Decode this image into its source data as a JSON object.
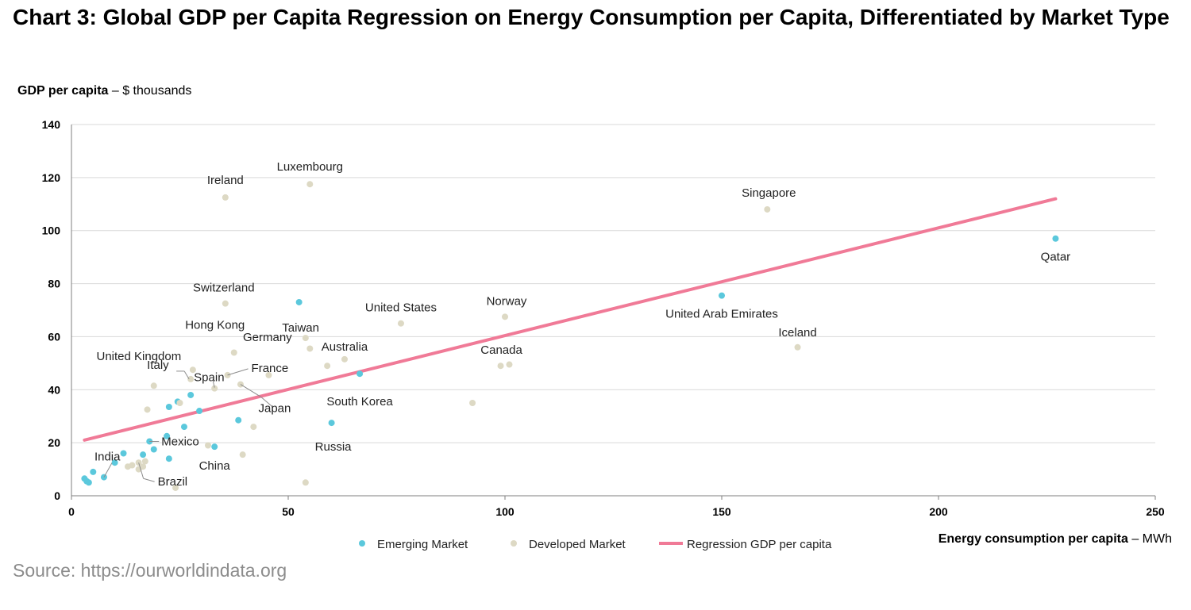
{
  "title": "Chart 3: Global GDP per Capita Regression on Energy Consumption per Capita, Differentiated by Market Type",
  "source": "Source: https://ourworldindata.org",
  "colors": {
    "emerging": "#5bc8dc",
    "developed": "#ddd9c4",
    "regression": "#f07a97",
    "grid": "#d9d9d9"
  },
  "chart_data": {
    "type": "scatter",
    "ylabel_bold": "GDP per capita",
    "ylabel_rest": " – $ thousands",
    "xlabel_bold": "Energy consumption per capita",
    "xlabel_rest": " – MWh",
    "xlim": [
      0,
      250
    ],
    "ylim": [
      0,
      140
    ],
    "x_ticks": [
      "0",
      "50",
      "100",
      "150",
      "200",
      "250"
    ],
    "y_ticks": [
      "0",
      "20",
      "40",
      "60",
      "80",
      "100",
      "120",
      "140"
    ],
    "grid": true,
    "legend_position": "bottom",
    "legend": [
      "Emerging Market",
      "Developed Market",
      "Regression GDP per capita"
    ],
    "regression": {
      "name": "Regression GDP per capita",
      "x": [
        3,
        227
      ],
      "y": [
        21,
        112
      ]
    },
    "series": [
      {
        "name": "Emerging Market",
        "points": [
          {
            "x": 227,
            "y": 97,
            "label": "Qatar"
          },
          {
            "x": 150,
            "y": 75.5,
            "label": "United Arab Emirates"
          },
          {
            "x": 52.5,
            "y": 73,
            "label": "Taiwan"
          },
          {
            "x": 66.5,
            "y": 46,
            "label": "South Korea"
          },
          {
            "x": 60,
            "y": 27.5,
            "label": "Russia"
          },
          {
            "x": 33,
            "y": 18.5,
            "label": "China"
          },
          {
            "x": 18,
            "y": 20.5,
            "label": "Mexico"
          },
          {
            "x": 7.5,
            "y": 7,
            "label": "India"
          },
          {
            "x": 27.5,
            "y": 38
          },
          {
            "x": 24.5,
            "y": 35.5
          },
          {
            "x": 22.5,
            "y": 33.5
          },
          {
            "x": 29.5,
            "y": 32
          },
          {
            "x": 38.5,
            "y": 28.5
          },
          {
            "x": 26,
            "y": 26
          },
          {
            "x": 22,
            "y": 22.5
          },
          {
            "x": 19,
            "y": 17.5
          },
          {
            "x": 16.5,
            "y": 15.5
          },
          {
            "x": 22.5,
            "y": 14
          },
          {
            "x": 12,
            "y": 16
          },
          {
            "x": 10,
            "y": 12.5
          },
          {
            "x": 5,
            "y": 9
          },
          {
            "x": 3,
            "y": 6.5
          },
          {
            "x": 3.5,
            "y": 5.5
          },
          {
            "x": 4,
            "y": 5
          }
        ]
      },
      {
        "name": "Developed Market",
        "points": [
          {
            "x": 55,
            "y": 117.5,
            "label": "Luxembourg"
          },
          {
            "x": 35.5,
            "y": 112.5,
            "label": "Ireland"
          },
          {
            "x": 160.5,
            "y": 108,
            "label": "Singapore"
          },
          {
            "x": 35.5,
            "y": 72.5,
            "label": "Switzerland"
          },
          {
            "x": 76,
            "y": 65,
            "label": "United States"
          },
          {
            "x": 100,
            "y": 67.5,
            "label": "Norway"
          },
          {
            "x": 167.5,
            "y": 56,
            "label": "Iceland"
          },
          {
            "x": 37.5,
            "y": 54,
            "label": "Hong Kong"
          },
          {
            "x": 54,
            "y": 59.5,
            "label": "Germany"
          },
          {
            "x": 28,
            "y": 47.5,
            "label": "United Kingdom"
          },
          {
            "x": 63,
            "y": 51.5,
            "label": "Australia"
          },
          {
            "x": 99,
            "y": 49,
            "label": "Canada"
          },
          {
            "x": 101,
            "y": 49.5
          },
          {
            "x": 36,
            "y": 45.5,
            "label": "France"
          },
          {
            "x": 27.5,
            "y": 44,
            "label": "Italy"
          },
          {
            "x": 33,
            "y": 40.5,
            "label": "Spain"
          },
          {
            "x": 39,
            "y": 42,
            "label": "Japan"
          },
          {
            "x": 55,
            "y": 55.5
          },
          {
            "x": 59,
            "y": 49
          },
          {
            "x": 45.5,
            "y": 45.5
          },
          {
            "x": 19,
            "y": 41.5
          },
          {
            "x": 92.5,
            "y": 35
          },
          {
            "x": 17.5,
            "y": 32.5
          },
          {
            "x": 25,
            "y": 35
          },
          {
            "x": 42,
            "y": 26
          },
          {
            "x": 39.5,
            "y": 15.5
          },
          {
            "x": 15.5,
            "y": 12.5,
            "label": "Brazil"
          },
          {
            "x": 13,
            "y": 11
          },
          {
            "x": 14,
            "y": 11.5
          },
          {
            "x": 15.5,
            "y": 10
          },
          {
            "x": 16.5,
            "y": 11
          },
          {
            "x": 17,
            "y": 13
          },
          {
            "x": 31.5,
            "y": 19
          },
          {
            "x": 24,
            "y": 3
          },
          {
            "x": 54,
            "y": 5
          }
        ]
      }
    ]
  }
}
